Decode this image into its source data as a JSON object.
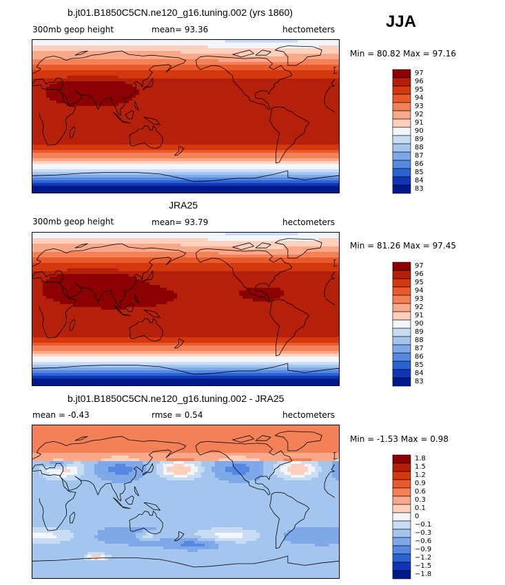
{
  "header": {
    "season": "JJA"
  },
  "chart_data": [
    {
      "type": "heatmap",
      "title": "b.jt01.B1850C5CN.ne120_g16.tuning.002 (yrs 1860)",
      "left_label": "300mb geop height",
      "center_label": "mean=   93.36",
      "right_label": "hectometers",
      "minmax_label": "Min =   80.82 Max =   97.16",
      "min": 80.82,
      "max": 97.16,
      "mean": 93.36,
      "colorbar_levels": [
        "97",
        "96",
        "95",
        "94",
        "93",
        "92",
        "91",
        "90",
        "89",
        "88",
        "87",
        "86",
        "85",
        "84",
        "83"
      ],
      "colorbar_colors": [
        "#8b0000",
        "#b5200a",
        "#d4380d",
        "#ea5a2b",
        "#f38157",
        "#f9a98a",
        "#fdd1bd",
        "#f2f6fb",
        "#c8ddf3",
        "#a4c6ee",
        "#7ea8e8",
        "#5588e0",
        "#2d62d3",
        "#1035b8",
        "#001a8a"
      ]
    },
    {
      "type": "heatmap",
      "title": "JRA25",
      "left_label": "300mb geop height",
      "center_label": "mean=   93.79",
      "right_label": "hectometers",
      "minmax_label": "Min =   81.26 Max =   97.45",
      "min": 81.26,
      "max": 97.45,
      "mean": 93.79,
      "colorbar_levels": [
        "97",
        "96",
        "95",
        "94",
        "93",
        "92",
        "91",
        "90",
        "89",
        "88",
        "87",
        "86",
        "85",
        "84",
        "83"
      ],
      "colorbar_colors": [
        "#8b0000",
        "#b5200a",
        "#d4380d",
        "#ea5a2b",
        "#f38157",
        "#f9a98a",
        "#fdd1bd",
        "#f2f6fb",
        "#c8ddf3",
        "#a4c6ee",
        "#7ea8e8",
        "#5588e0",
        "#2d62d3",
        "#1035b8",
        "#001a8a"
      ]
    },
    {
      "type": "heatmap",
      "title": "b.jt01.B1850C5CN.ne120_g16.tuning.002 - JRA25",
      "left_label": "mean =   -0.43",
      "center_label": "rmse =    0.54",
      "right_label": "hectometers",
      "minmax_label": "Min =   -1.53 Max =    0.98",
      "min": -1.53,
      "max": 0.98,
      "mean": -0.43,
      "rmse": 0.54,
      "colorbar_levels": [
        "1.8",
        "1.5",
        "1.2",
        "0.9",
        "0.6",
        "0.3",
        "0.1",
        "0",
        "-0.1",
        "-0.3",
        "-0.6",
        "-0.9",
        "-1.2",
        "-1.5",
        "-1.8"
      ],
      "colorbar_colors": [
        "#8b0000",
        "#b5200a",
        "#d4380d",
        "#ea5a2b",
        "#f38157",
        "#f9a98a",
        "#fdd1bd",
        "#f2f6fb",
        "#c8ddf3",
        "#a4c6ee",
        "#7ea8e8",
        "#5588e0",
        "#2d62d3",
        "#1035b8",
        "#001a8a"
      ]
    }
  ]
}
